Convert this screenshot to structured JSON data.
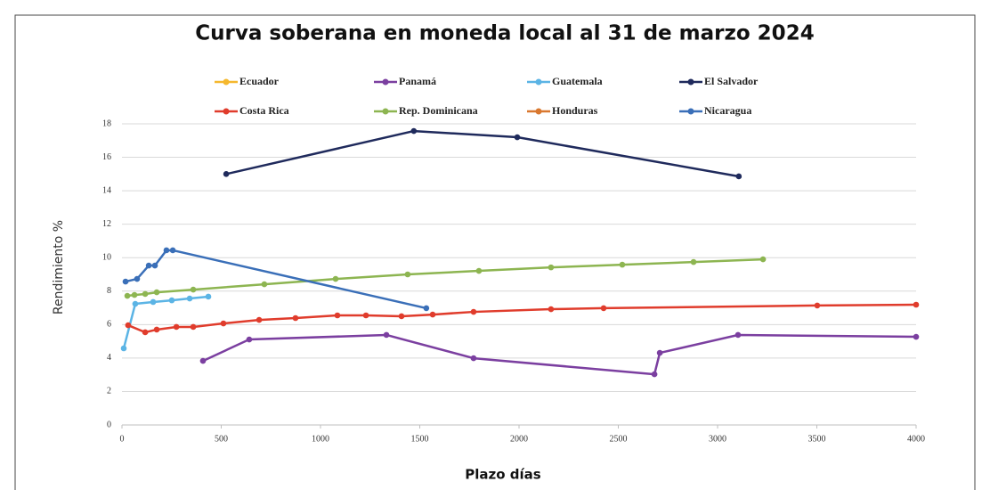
{
  "chart_data": {
    "type": "line",
    "title": "Curva soberana en moneda local al 31 de marzo 2024",
    "x_label": "Plazo días",
    "y_label": "Rendimiento %",
    "xlim": [
      0,
      4000
    ],
    "xticks": [
      0,
      500,
      1000,
      1500,
      2000,
      2500,
      3000,
      3500,
      4000
    ],
    "ylim": [
      0,
      18
    ],
    "yticks": [
      0,
      2,
      4,
      6,
      8,
      10,
      12,
      14,
      16,
      18
    ],
    "grid": true,
    "series": [
      {
        "name": "Ecuador",
        "color": "#f5b82e",
        "x": [],
        "values": []
      },
      {
        "name": "Panamá",
        "color": "#7b3fa0",
        "x": [
          408,
          641,
          1332,
          1771,
          2682,
          2709,
          3103,
          4000
        ],
        "values": [
          3.83,
          5.11,
          5.38,
          3.99,
          3.03,
          4.31,
          5.38,
          5.27
        ]
      },
      {
        "name": "Guatemala",
        "color": "#5bb4e5",
        "x": [
          9,
          67,
          157,
          251,
          341,
          435
        ],
        "values": [
          4.58,
          7.24,
          7.35,
          7.45,
          7.56,
          7.67
        ]
      },
      {
        "name": "El Salvador",
        "color": "#1f2a5c",
        "x": [
          525,
          1470,
          1991,
          3107
        ],
        "values": [
          15.0,
          17.57,
          17.2,
          14.86
        ]
      },
      {
        "name": "Costa Rica",
        "color": "#e03c2c",
        "x": [
          31,
          117,
          175,
          274,
          359,
          511,
          691,
          874,
          1085,
          1229,
          1408,
          1565,
          1771,
          2161,
          2426,
          3502,
          4000
        ],
        "values": [
          5.96,
          5.54,
          5.7,
          5.86,
          5.86,
          6.07,
          6.28,
          6.39,
          6.55,
          6.55,
          6.5,
          6.6,
          6.76,
          6.92,
          6.98,
          7.14,
          7.19
        ]
      },
      {
        "name": "Rep. Dominicana",
        "color": "#8db551",
        "x": [
          27,
          63,
          117,
          175,
          359,
          717,
          1076,
          1439,
          1798,
          2161,
          2520,
          2879,
          3229
        ],
        "values": [
          7.72,
          7.77,
          7.83,
          7.93,
          8.09,
          8.41,
          8.73,
          9.0,
          9.21,
          9.42,
          9.58,
          9.74,
          9.9
        ]
      },
      {
        "name": "Honduras",
        "color": "#d9782f",
        "x": [],
        "values": []
      },
      {
        "name": "Nicaragua",
        "color": "#3a6fb8",
        "x": [
          18,
          76,
          135,
          166,
          224,
          256,
          1533
        ],
        "values": [
          8.57,
          8.73,
          9.53,
          9.53,
          10.44,
          10.44,
          6.98
        ]
      }
    ]
  }
}
